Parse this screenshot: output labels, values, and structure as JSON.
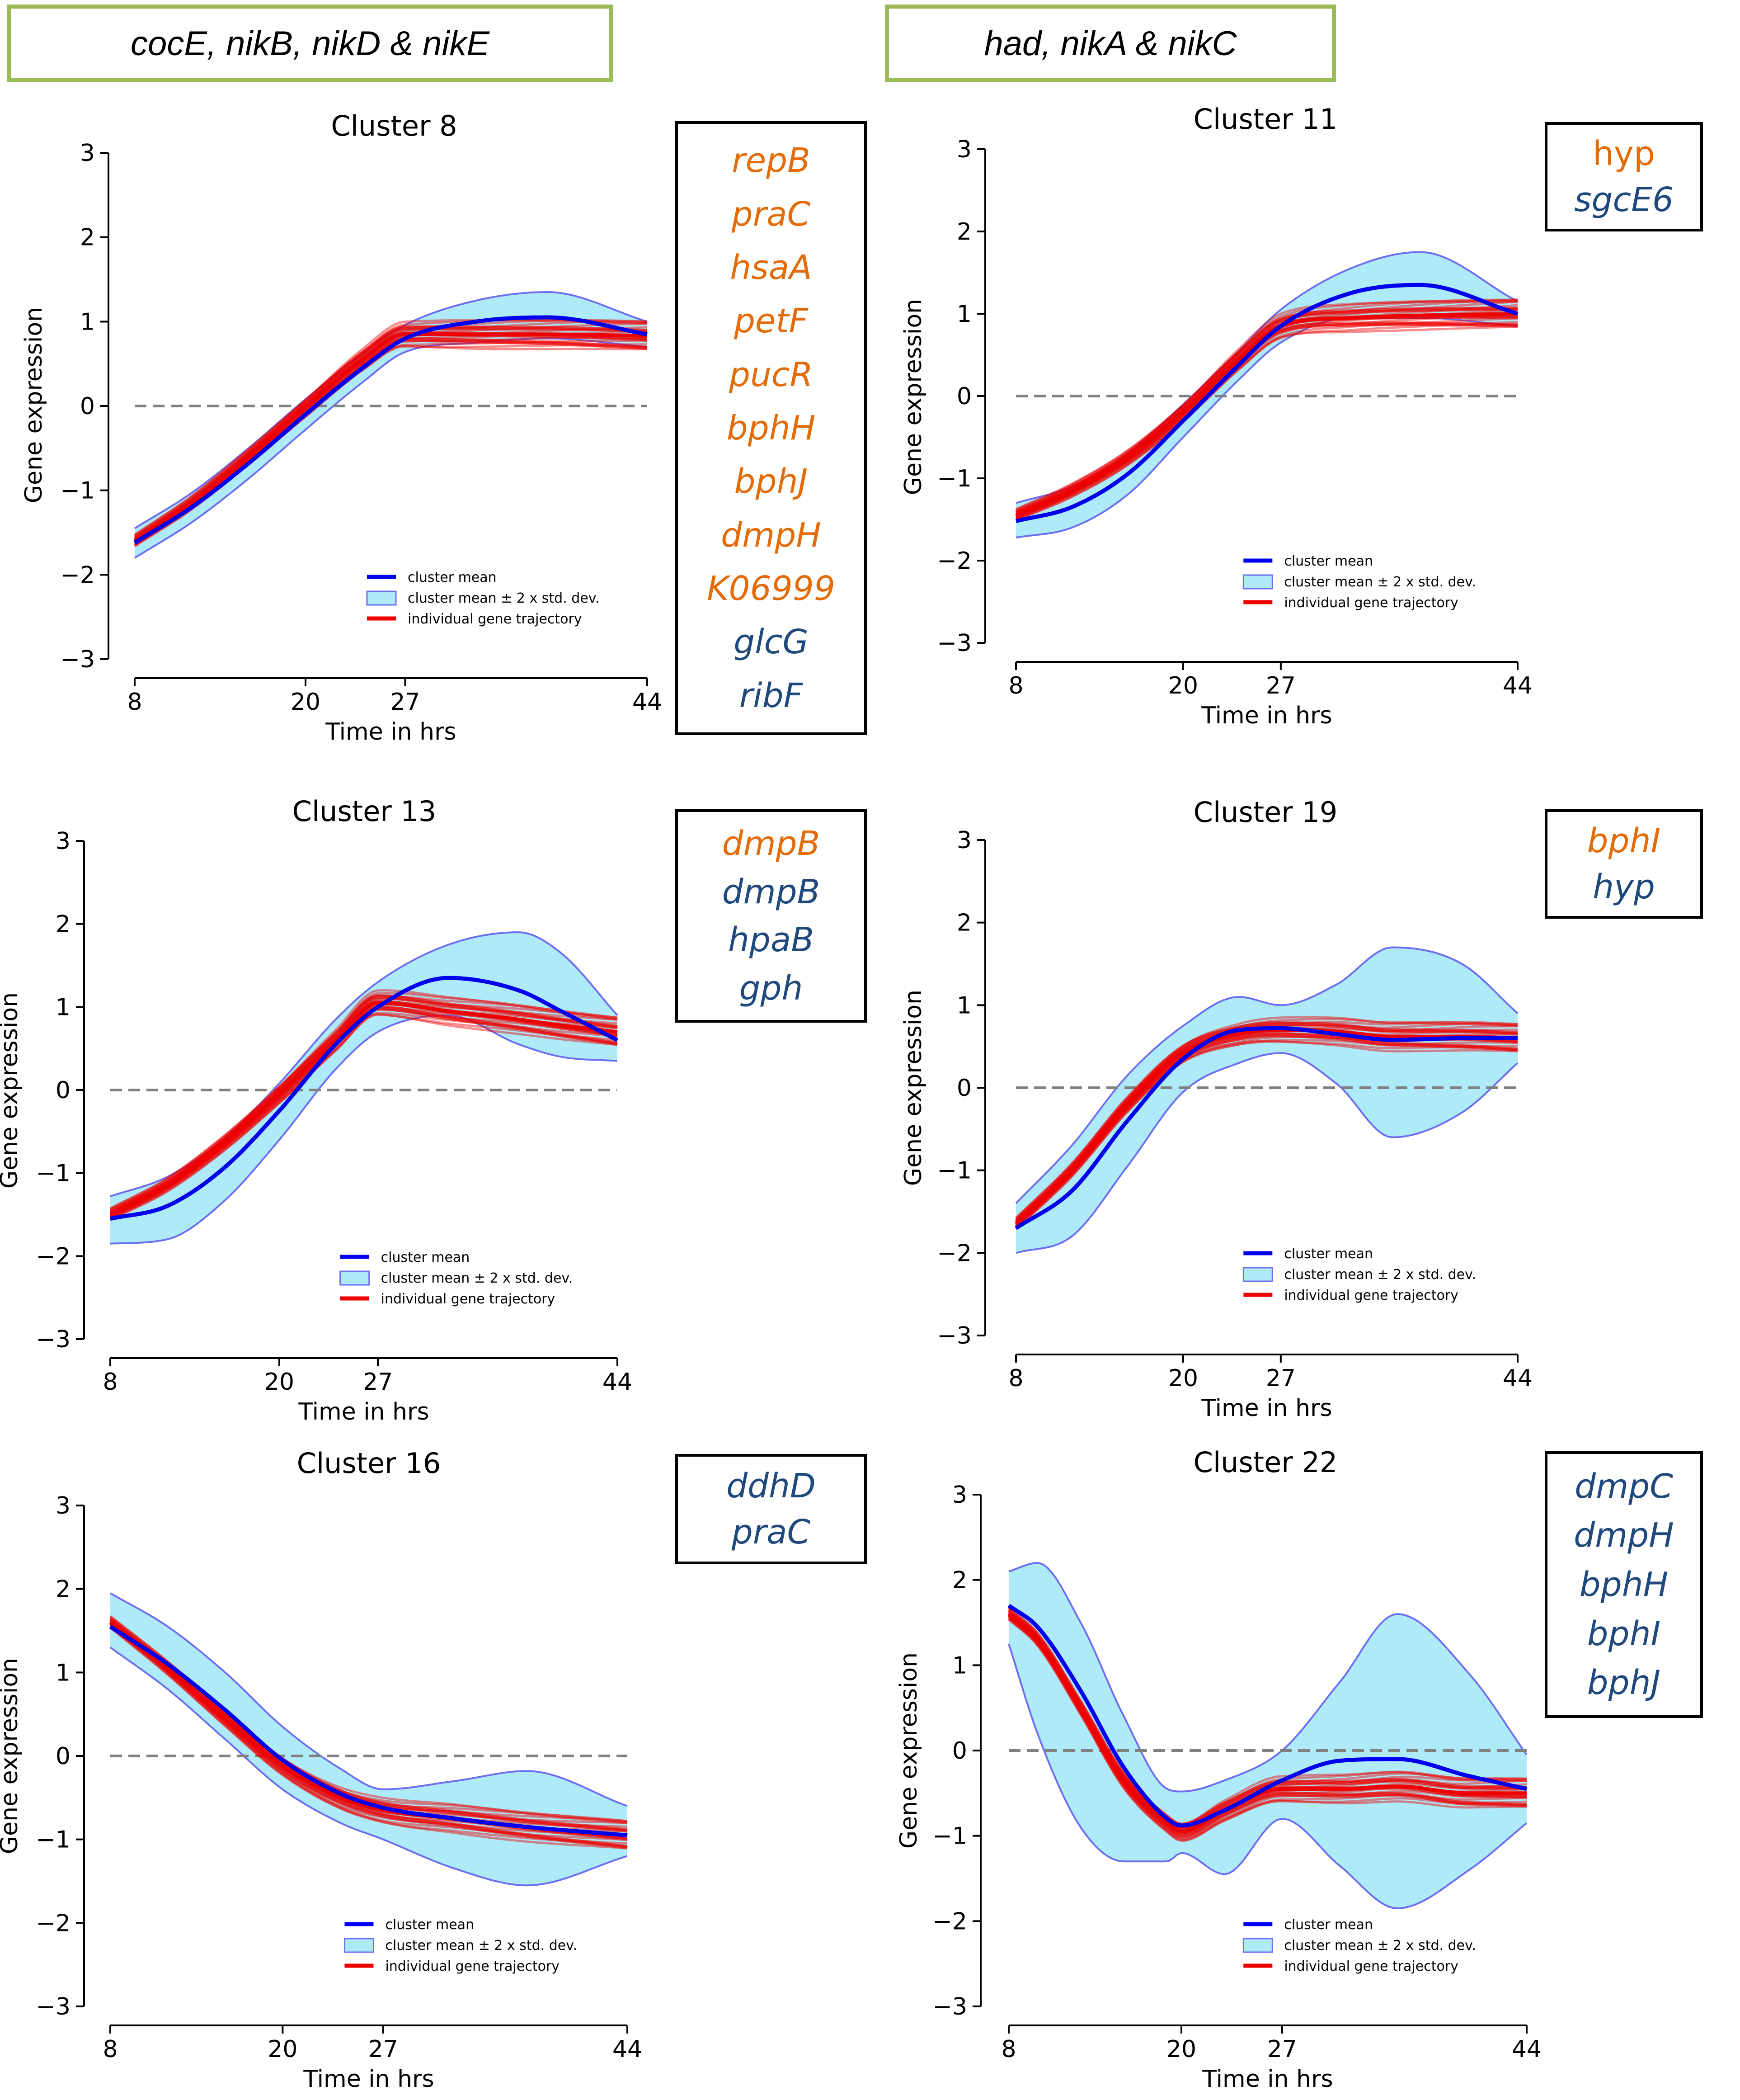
{
  "headers": [
    {
      "text": "cocE, nikB, nikD & nikE"
    },
    {
      "text": "had, nikA & nikC"
    }
  ],
  "colors": {
    "mean": "#0000ee",
    "band_fill": "#aeeaf7",
    "band_edge": "#6e6ef2",
    "trajectory": "#ee0000",
    "zero_line": "#808080",
    "gene_orange": "#e36c09",
    "gene_blue": "#1f497d",
    "header_border": "#9bbb59"
  },
  "legend": {
    "mean": "cluster mean",
    "band": "cluster mean ± 2 x std. dev.",
    "trajectory": "individual gene trajectory"
  },
  "chart_data": [
    {
      "type": "line",
      "title": "Cluster 8",
      "xlabel": "Time in hrs",
      "ylabel": "Gene expression",
      "xticks": [
        8,
        20,
        27,
        44
      ],
      "yticks": [
        3,
        2,
        1,
        0,
        -1,
        -2,
        -3
      ],
      "xlim": [
        8,
        44
      ],
      "ylim": [
        -3,
        3
      ],
      "series": [
        {
          "name": "cluster mean",
          "x": [
            8,
            12,
            16,
            20,
            24,
            27,
            32,
            37,
            44
          ],
          "values": [
            -1.62,
            -1.2,
            -0.68,
            -0.1,
            0.45,
            0.8,
            1.0,
            1.05,
            0.85
          ]
        },
        {
          "name": "cluster mean + 2 x std. dev.",
          "x": [
            8,
            12,
            16,
            20,
            24,
            27,
            32,
            37,
            44
          ],
          "values": [
            -1.45,
            -1.03,
            -0.5,
            0.08,
            0.62,
            0.96,
            1.25,
            1.35,
            1.0
          ]
        },
        {
          "name": "cluster mean - 2 x std. dev.",
          "x": [
            8,
            12,
            16,
            20,
            24,
            27,
            32,
            37,
            44
          ],
          "values": [
            -1.8,
            -1.38,
            -0.86,
            -0.28,
            0.28,
            0.64,
            0.75,
            0.8,
            0.7
          ]
        },
        {
          "name": "individual gene trajectory",
          "x": [
            8,
            12,
            16,
            20,
            24,
            27,
            32,
            37,
            44
          ],
          "values": [
            -1.6,
            -1.15,
            -0.6,
            -0.02,
            0.55,
            0.85,
            0.85,
            0.85,
            0.83
          ]
        }
      ],
      "genes": [
        {
          "name": "repB",
          "color": "orange"
        },
        {
          "name": "praC",
          "color": "orange"
        },
        {
          "name": "hsaA",
          "color": "orange"
        },
        {
          "name": "petF",
          "color": "orange"
        },
        {
          "name": "pucR",
          "color": "orange"
        },
        {
          "name": "bphH",
          "color": "orange"
        },
        {
          "name": "bphJ",
          "color": "orange"
        },
        {
          "name": "dmpH",
          "color": "orange"
        },
        {
          "name": "K06999",
          "color": "orange"
        },
        {
          "name": "glcG",
          "color": "blue"
        },
        {
          "name": "ribF",
          "color": "blue"
        }
      ]
    },
    {
      "type": "line",
      "title": "Cluster 11",
      "xlabel": "Time in hrs",
      "ylabel": "Gene expression",
      "xticks": [
        8,
        20,
        27,
        44
      ],
      "yticks": [
        3,
        2,
        1,
        0,
        -1,
        -2,
        -3
      ],
      "xlim": [
        8,
        44
      ],
      "ylim": [
        -3,
        3
      ],
      "series": [
        {
          "name": "cluster mean",
          "x": [
            8,
            12,
            16,
            20,
            24,
            27,
            32,
            37,
            44
          ],
          "values": [
            -1.52,
            -1.35,
            -0.95,
            -0.3,
            0.38,
            0.85,
            1.25,
            1.35,
            1.0
          ]
        },
        {
          "name": "cluster mean + 2 x std. dev.",
          "x": [
            8,
            12,
            16,
            20,
            24,
            27,
            32,
            37,
            44
          ],
          "values": [
            -1.3,
            -1.1,
            -0.7,
            -0.1,
            0.55,
            1.05,
            1.55,
            1.75,
            1.15
          ]
        },
        {
          "name": "cluster mean - 2 x std. dev.",
          "x": [
            8,
            12,
            16,
            20,
            24,
            27,
            32,
            37,
            44
          ],
          "values": [
            -1.72,
            -1.6,
            -1.2,
            -0.5,
            0.2,
            0.65,
            0.95,
            0.95,
            0.85
          ]
        },
        {
          "name": "individual gene trajectory",
          "x": [
            8,
            12,
            16,
            20,
            24,
            27,
            32,
            37,
            44
          ],
          "values": [
            -1.45,
            -1.15,
            -0.75,
            -0.2,
            0.45,
            0.85,
            0.95,
            0.98,
            1.0
          ]
        }
      ],
      "genes": [
        {
          "name": "hyp",
          "color": "orange",
          "upright": true
        },
        {
          "name": "sgcE6",
          "color": "blue"
        }
      ]
    },
    {
      "type": "line",
      "title": "Cluster 13",
      "xlabel": "Time in hrs",
      "ylabel": "Gene expression",
      "xticks": [
        8,
        20,
        27,
        44
      ],
      "yticks": [
        3,
        2,
        1,
        0,
        -1,
        -2,
        -3
      ],
      "xlim": [
        8,
        44
      ],
      "ylim": [
        -3,
        3
      ],
      "series": [
        {
          "name": "cluster mean",
          "x": [
            8,
            12,
            16,
            20,
            24,
            27,
            32,
            37,
            40,
            44
          ],
          "values": [
            -1.55,
            -1.4,
            -0.95,
            -0.25,
            0.55,
            1.0,
            1.35,
            1.2,
            0.95,
            0.6
          ]
        },
        {
          "name": "cluster mean + 2 x std. dev.",
          "x": [
            8,
            12,
            16,
            20,
            24,
            27,
            32,
            37,
            40,
            44
          ],
          "values": [
            -1.28,
            -1.05,
            -0.6,
            0.08,
            0.85,
            1.3,
            1.75,
            1.9,
            1.65,
            0.9
          ]
        },
        {
          "name": "cluster mean - 2 x std. dev.",
          "x": [
            8,
            12,
            16,
            20,
            24,
            27,
            32,
            37,
            40,
            44
          ],
          "values": [
            -1.85,
            -1.8,
            -1.35,
            -0.6,
            0.25,
            0.7,
            0.9,
            0.55,
            0.4,
            0.35
          ]
        },
        {
          "name": "individual gene trajectory",
          "x": [
            8,
            12,
            16,
            20,
            24,
            27,
            32,
            37,
            40,
            44
          ],
          "values": [
            -1.5,
            -1.15,
            -0.65,
            -0.05,
            0.6,
            1.05,
            0.95,
            0.85,
            0.78,
            0.7
          ]
        }
      ],
      "genes": [
        {
          "name": "dmpB",
          "color": "orange"
        },
        {
          "name": "dmpB",
          "color": "blue"
        },
        {
          "name": "hpaB",
          "color": "blue"
        },
        {
          "name": "gph",
          "color": "blue"
        }
      ]
    },
    {
      "type": "line",
      "title": "Cluster 19",
      "xlabel": "Time in hrs",
      "ylabel": "Gene expression",
      "xticks": [
        8,
        20,
        27,
        44
      ],
      "yticks": [
        3,
        2,
        1,
        0,
        -1,
        -2,
        -3
      ],
      "xlim": [
        8,
        44
      ],
      "ylim": [
        -3,
        3
      ],
      "series": [
        {
          "name": "cluster mean",
          "x": [
            8,
            12,
            16,
            20,
            24,
            27,
            31,
            35,
            40,
            44
          ],
          "values": [
            -1.7,
            -1.25,
            -0.4,
            0.35,
            0.7,
            0.72,
            0.65,
            0.58,
            0.6,
            0.6
          ]
        },
        {
          "name": "cluster mean + 2 x std. dev.",
          "x": [
            8,
            12,
            16,
            20,
            24,
            27,
            31,
            35,
            40,
            44
          ],
          "values": [
            -1.4,
            -0.7,
            0.15,
            0.75,
            1.1,
            1.0,
            1.25,
            1.7,
            1.5,
            0.9
          ]
        },
        {
          "name": "cluster mean - 2 x std. dev.",
          "x": [
            8,
            12,
            16,
            20,
            24,
            27,
            31,
            35,
            40,
            44
          ],
          "values": [
            -2.0,
            -1.8,
            -0.95,
            -0.05,
            0.3,
            0.42,
            0.05,
            -0.6,
            -0.3,
            0.3
          ]
        },
        {
          "name": "individual gene trajectory",
          "x": [
            8,
            12,
            16,
            20,
            24,
            27,
            31,
            35,
            40,
            44
          ],
          "values": [
            -1.65,
            -1.0,
            -0.2,
            0.42,
            0.65,
            0.7,
            0.68,
            0.62,
            0.62,
            0.6
          ]
        }
      ],
      "genes": [
        {
          "name": "bphI",
          "color": "orange"
        },
        {
          "name": "hyp",
          "color": "blue"
        }
      ]
    },
    {
      "type": "line",
      "title": "Cluster 16",
      "xlabel": "Time in hrs",
      "ylabel": "Gene expression",
      "xticks": [
        8,
        20,
        27,
        44
      ],
      "yticks": [
        3,
        2,
        1,
        0,
        -1,
        -2,
        -3
      ],
      "xlim": [
        8,
        44
      ],
      "ylim": [
        -3,
        3
      ],
      "series": [
        {
          "name": "cluster mean",
          "x": [
            8,
            12,
            16,
            20,
            24,
            27,
            32,
            37,
            44
          ],
          "values": [
            1.55,
            1.1,
            0.55,
            -0.05,
            -0.45,
            -0.62,
            -0.75,
            -0.85,
            -0.95
          ]
        },
        {
          "name": "cluster mean + 2 x std. dev.",
          "x": [
            8,
            12,
            16,
            20,
            24,
            27,
            32,
            37,
            44
          ],
          "values": [
            1.95,
            1.55,
            1.0,
            0.35,
            -0.15,
            -0.4,
            -0.3,
            -0.18,
            -0.6
          ]
        },
        {
          "name": "cluster mean - 2 x std. dev.",
          "x": [
            8,
            12,
            16,
            20,
            24,
            27,
            32,
            37,
            44
          ],
          "values": [
            1.3,
            0.8,
            0.2,
            -0.4,
            -0.8,
            -1.0,
            -1.35,
            -1.55,
            -1.2
          ]
        },
        {
          "name": "individual gene trajectory",
          "x": [
            8,
            12,
            16,
            20,
            24,
            27,
            32,
            37,
            44
          ],
          "values": [
            1.6,
            1.05,
            0.45,
            -0.12,
            -0.5,
            -0.65,
            -0.75,
            -0.85,
            -0.95
          ]
        }
      ],
      "genes": [
        {
          "name": "ddhD",
          "color": "blue"
        },
        {
          "name": "praC",
          "color": "blue"
        }
      ]
    },
    {
      "type": "line",
      "title": "Cluster 22",
      "xlabel": "Time in hrs",
      "ylabel": "Gene expression",
      "xticks": [
        8,
        20,
        27,
        44
      ],
      "yticks": [
        3,
        2,
        1,
        0,
        -1,
        -2,
        -3
      ],
      "xlim": [
        8,
        44
      ],
      "ylim": [
        -3,
        3
      ],
      "series": [
        {
          "name": "cluster mean",
          "x": [
            8,
            10,
            13,
            16,
            19,
            20,
            23,
            27,
            31,
            35,
            40,
            44
          ],
          "values": [
            1.7,
            1.45,
            0.7,
            -0.2,
            -0.8,
            -0.88,
            -0.7,
            -0.35,
            -0.12,
            -0.1,
            -0.3,
            -0.45
          ]
        },
        {
          "name": "cluster mean + 2 x std. dev.",
          "x": [
            8,
            10,
            13,
            16,
            19,
            20,
            23,
            27,
            31,
            35,
            40,
            44
          ],
          "values": [
            2.1,
            2.2,
            1.5,
            0.4,
            -0.45,
            -0.48,
            -0.35,
            0.0,
            0.8,
            1.6,
            0.9,
            -0.05
          ]
        },
        {
          "name": "cluster mean - 2 x std. dev.",
          "x": [
            8,
            10,
            13,
            16,
            19,
            20,
            23,
            27,
            31,
            35,
            40,
            44
          ],
          "values": [
            1.25,
            0.2,
            -0.9,
            -1.3,
            -1.3,
            -1.2,
            -1.45,
            -0.8,
            -1.35,
            -1.85,
            -1.4,
            -0.85
          ]
        },
        {
          "name": "individual gene trajectory",
          "x": [
            8,
            10,
            13,
            16,
            19,
            20,
            23,
            27,
            31,
            35,
            40,
            44
          ],
          "values": [
            1.6,
            1.3,
            0.5,
            -0.35,
            -0.85,
            -0.95,
            -0.7,
            -0.45,
            -0.45,
            -0.42,
            -0.5,
            -0.5
          ]
        }
      ],
      "genes": [
        {
          "name": "dmpC",
          "color": "blue"
        },
        {
          "name": "dmpH",
          "color": "blue"
        },
        {
          "name": "bphH",
          "color": "blue"
        },
        {
          "name": "bphI",
          "color": "blue"
        },
        {
          "name": "bphJ",
          "color": "blue"
        }
      ]
    }
  ]
}
